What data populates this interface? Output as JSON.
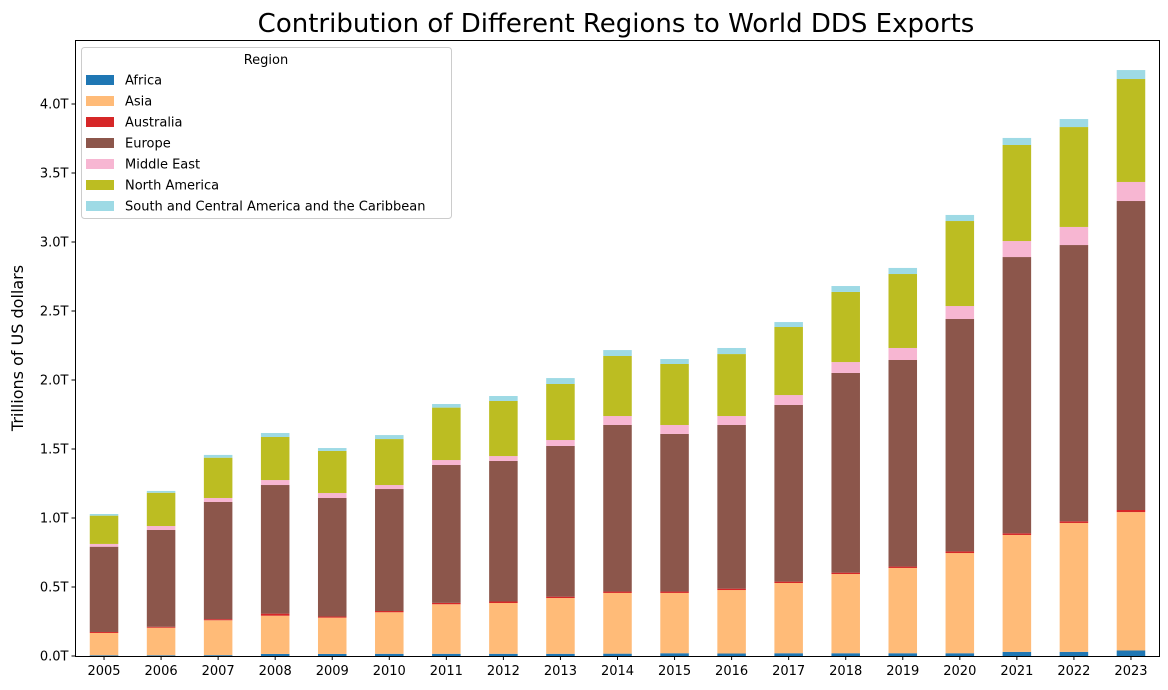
{
  "chart_data": {
    "type": "bar",
    "stacked": true,
    "title": "Contribution of Different Regions to World DDS Exports",
    "xlabel": "",
    "ylabel": "Trillions of US dollars",
    "ylim": [
      0,
      4.45
    ],
    "yticks": [
      0,
      0.5,
      1.0,
      1.5,
      2.0,
      2.5,
      3.0,
      3.5,
      4.0
    ],
    "ytick_labels": [
      "0.0T",
      "0.5T",
      "1.0T",
      "1.5T",
      "2.0T",
      "2.5T",
      "3.0T",
      "3.5T",
      "4.0T"
    ],
    "grid": false,
    "legend_title": "Region",
    "legend_position": "top-left",
    "categories": [
      "2005",
      "2006",
      "2007",
      "2008",
      "2009",
      "2010",
      "2011",
      "2012",
      "2013",
      "2014",
      "2015",
      "2016",
      "2017",
      "2018",
      "2019",
      "2020",
      "2021",
      "2022",
      "2023"
    ],
    "series": [
      {
        "name": "Africa",
        "color": "#1f77b4",
        "values": [
          0.005,
          0.005,
          0.006,
          0.015,
          0.015,
          0.016,
          0.016,
          0.016,
          0.016,
          0.017,
          0.02,
          0.018,
          0.02,
          0.02,
          0.02,
          0.02,
          0.03,
          0.03,
          0.04
        ]
      },
      {
        "name": "Asia",
        "color": "#ffbb78",
        "values": [
          0.162,
          0.2,
          0.253,
          0.277,
          0.263,
          0.301,
          0.359,
          0.368,
          0.404,
          0.44,
          0.437,
          0.46,
          0.509,
          0.574,
          0.618,
          0.726,
          0.847,
          0.934,
          1.003
        ]
      },
      {
        "name": "Australia",
        "color": "#d62728",
        "values": [
          0.007,
          0.007,
          0.008,
          0.015,
          0.008,
          0.009,
          0.01,
          0.011,
          0.01,
          0.01,
          0.01,
          0.01,
          0.01,
          0.01,
          0.01,
          0.012,
          0.012,
          0.012,
          0.015
        ]
      },
      {
        "name": "Europe",
        "color": "#8c564b",
        "values": [
          0.618,
          0.701,
          0.849,
          0.932,
          0.859,
          0.884,
          0.999,
          1.018,
          1.092,
          1.207,
          1.142,
          1.186,
          1.28,
          1.447,
          1.497,
          1.684,
          2.002,
          2.002,
          2.239
        ]
      },
      {
        "name": "Middle East",
        "color": "#f7b6d2",
        "values": [
          0.02,
          0.029,
          0.029,
          0.036,
          0.036,
          0.029,
          0.036,
          0.036,
          0.043,
          0.065,
          0.065,
          0.065,
          0.072,
          0.079,
          0.087,
          0.094,
          0.116,
          0.131,
          0.138
        ]
      },
      {
        "name": "North America",
        "color": "#bcbd22",
        "values": [
          0.205,
          0.241,
          0.292,
          0.312,
          0.305,
          0.333,
          0.38,
          0.399,
          0.406,
          0.435,
          0.442,
          0.449,
          0.493,
          0.508,
          0.536,
          0.616,
          0.696,
          0.724,
          0.746
        ]
      },
      {
        "name": "South and Central America and the Caribbean",
        "color": "#9edae5",
        "values": [
          0.012,
          0.013,
          0.02,
          0.029,
          0.021,
          0.029,
          0.026,
          0.036,
          0.043,
          0.043,
          0.036,
          0.044,
          0.036,
          0.043,
          0.044,
          0.044,
          0.051,
          0.058,
          0.065
        ]
      }
    ]
  }
}
